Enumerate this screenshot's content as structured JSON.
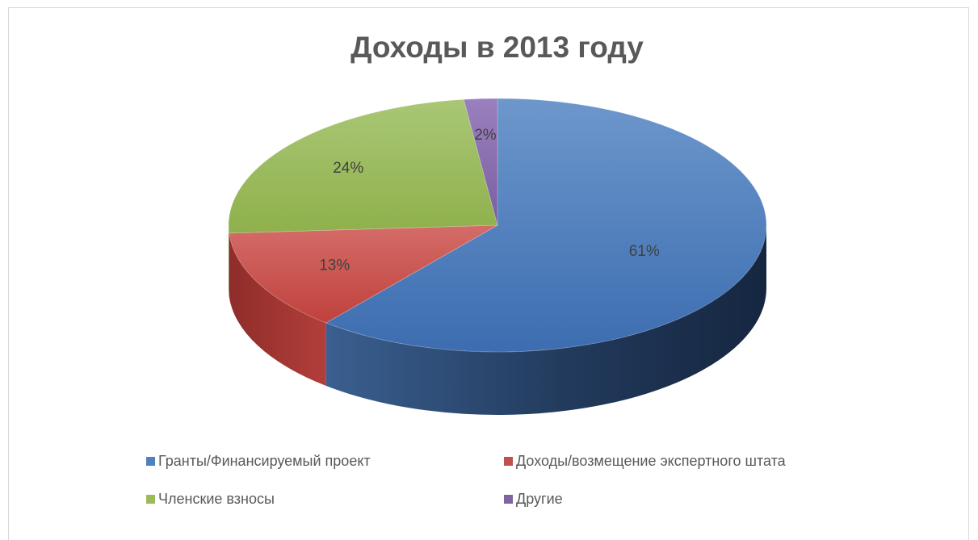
{
  "chart_data": {
    "type": "pie",
    "style": "3d",
    "title": "Доходы в 2013 году",
    "categories": [
      "Гранты/Финансируемый проект",
      "Доходы/возмещение экспертного штата",
      "Членские взносы",
      "Другие"
    ],
    "values": [
      61,
      13,
      24,
      2
    ],
    "labels": [
      "61%",
      "13%",
      "24%",
      "2%"
    ],
    "colors": [
      "#4f81bd",
      "#c0504d",
      "#9bbb59",
      "#8064a2"
    ],
    "legend_position": "bottom"
  }
}
